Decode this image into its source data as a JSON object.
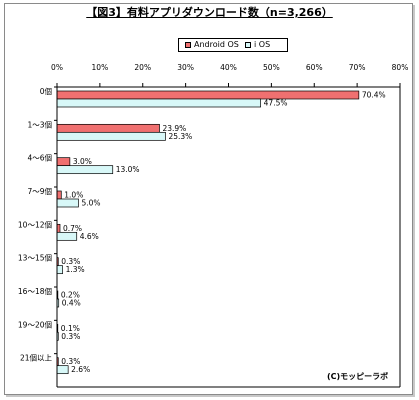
{
  "chart_data": {
    "type": "bar",
    "orientation": "horizontal",
    "title": "【図3】有料アプリダウンロード数（n=3,266）",
    "categories": [
      "0個",
      "1〜3個",
      "4〜6個",
      "7〜9個",
      "10〜12個",
      "13〜15個",
      "16〜18個",
      "19〜20個",
      "21個以上"
    ],
    "series": [
      {
        "name": "Android OS",
        "color": "#f07070",
        "values": [
          70.4,
          23.9,
          3.0,
          1.0,
          0.7,
          0.3,
          0.2,
          0.1,
          0.3
        ],
        "labels": [
          "70.4%",
          "23.9%",
          "3.0%",
          "1.0%",
          "0.7%",
          "0.3%",
          "0.2%",
          "0.1%",
          "0.3%"
        ]
      },
      {
        "name": "i OS",
        "color": "#d8f8f8",
        "values": [
          47.5,
          25.3,
          13.0,
          5.0,
          4.6,
          1.3,
          0.4,
          0.3,
          2.6
        ],
        "labels": [
          "47.5%",
          "25.3%",
          "13.0%",
          "5.0%",
          "4.6%",
          "1.3%",
          "0.4%",
          "0.3%",
          "2.6%"
        ]
      }
    ],
    "xlim": [
      0,
      80
    ],
    "xticks": [
      0,
      10,
      20,
      30,
      40,
      50,
      60,
      70,
      80
    ],
    "xtick_labels": [
      "0%",
      "10%",
      "20%",
      "30%",
      "40%",
      "50%",
      "60%",
      "70%",
      "80%"
    ],
    "xlabel": "",
    "ylabel": "",
    "grid": false,
    "legend_position": "top-center",
    "credit": "(C)モッピーラボ"
  }
}
